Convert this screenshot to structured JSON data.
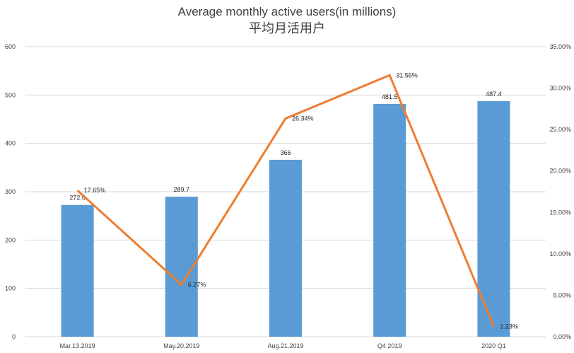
{
  "chart_data": {
    "type": "bar",
    "title": "Average monthly active users(in millions)",
    "subtitle": "平均月活用户",
    "categories": [
      "Mar.13.2019",
      "May.20.2019",
      "Aug.21.2019",
      "Q4 2019",
      "2020 Q1"
    ],
    "series": [
      {
        "type": "bar",
        "values": [
          272.6,
          289.7,
          366,
          481.5,
          487.4
        ],
        "labels": [
          "272.6",
          "289.7",
          "366",
          "481.5",
          "487.4"
        ],
        "color": "#5b9bd5",
        "axis": "left"
      },
      {
        "type": "line",
        "values": [
          17.65,
          6.27,
          26.34,
          31.56,
          1.23
        ],
        "labels": [
          "17.65%",
          "6.27%",
          "26.34%",
          "31.56%",
          "1.23%"
        ],
        "color": "#ed7d31",
        "axis": "right"
      }
    ],
    "y_left": {
      "range": [
        0,
        600
      ],
      "ticks": [
        "0",
        "100",
        "200",
        "300",
        "400",
        "500",
        "600"
      ]
    },
    "y_right": {
      "range": [
        0,
        35
      ],
      "ticks": [
        "0.00%",
        "5.00%",
        "10.00%",
        "15.00%",
        "20.00%",
        "25.00%",
        "30.00%",
        "35.00%"
      ]
    },
    "gridlines": true,
    "legend": "none"
  }
}
